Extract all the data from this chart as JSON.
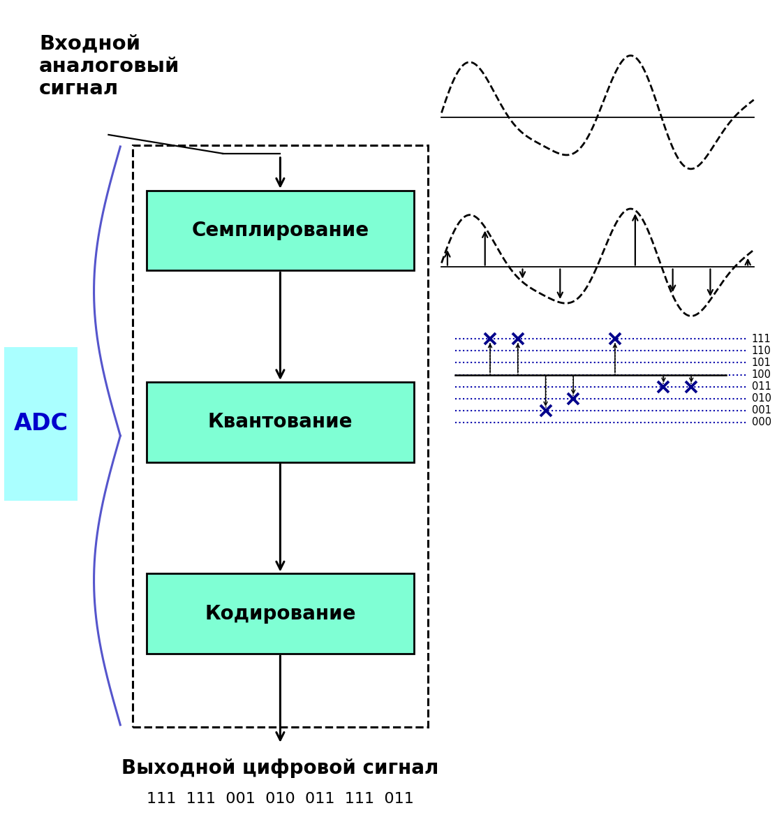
{
  "title_input": "Входной\nаналоговый\nсигнал",
  "title_output": "Выходной цифровой сигнал",
  "output_code": "111  111  001  010  011  111  011",
  "box_labels": [
    "Семплирование",
    "Квантование",
    "Кодирование"
  ],
  "adc_label": "ADC",
  "box_facecolor": "#7fffd4",
  "box_edgecolor": "#000000",
  "adc_bg": "#aaffff",
  "adc_text_color": "#0000cc",
  "quant_levels": [
    "111",
    "110",
    "101",
    "100",
    "011",
    "010",
    "001",
    "000"
  ],
  "line_color": "#0000aa",
  "background_color": "#ffffff",
  "fig_width": 11.13,
  "fig_height": 11.77,
  "dpi": 100
}
